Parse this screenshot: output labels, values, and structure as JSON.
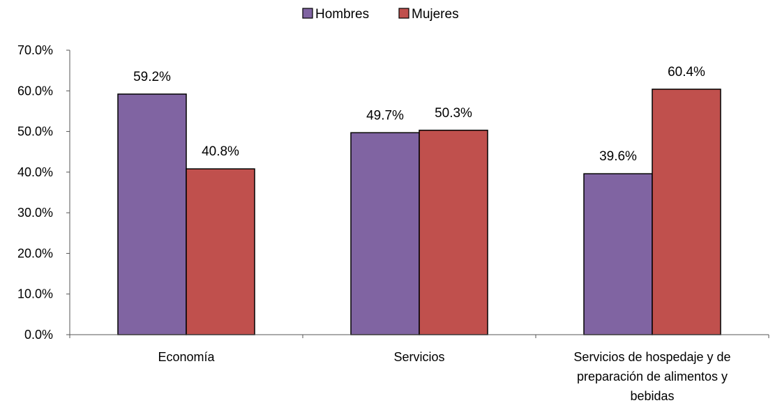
{
  "chart_data": {
    "type": "bar",
    "categories": [
      [
        "Economía"
      ],
      [
        "Servicios"
      ],
      [
        "Servicios de hospedaje y de",
        "preparación de alimentos y",
        "bebidas"
      ]
    ],
    "series": [
      {
        "name": "Hombres",
        "color": "#8064A2",
        "values": [
          59.2,
          49.7,
          39.6
        ],
        "labels": [
          "59.2%",
          "49.7%",
          "39.6%"
        ]
      },
      {
        "name": "Mujeres",
        "color": "#C0504D",
        "values": [
          40.8,
          50.3,
          60.4
        ],
        "labels": [
          "40.8%",
          "50.3%",
          "60.4%"
        ]
      }
    ],
    "ylim": [
      0,
      70
    ],
    "yticks": [
      "0.0%",
      "10.0%",
      "20.0%",
      "30.0%",
      "40.0%",
      "50.0%",
      "60.0%",
      "70.0%"
    ],
    "title": "",
    "xlabel": "",
    "ylabel": "",
    "legend": "top-center",
    "grid": false
  }
}
